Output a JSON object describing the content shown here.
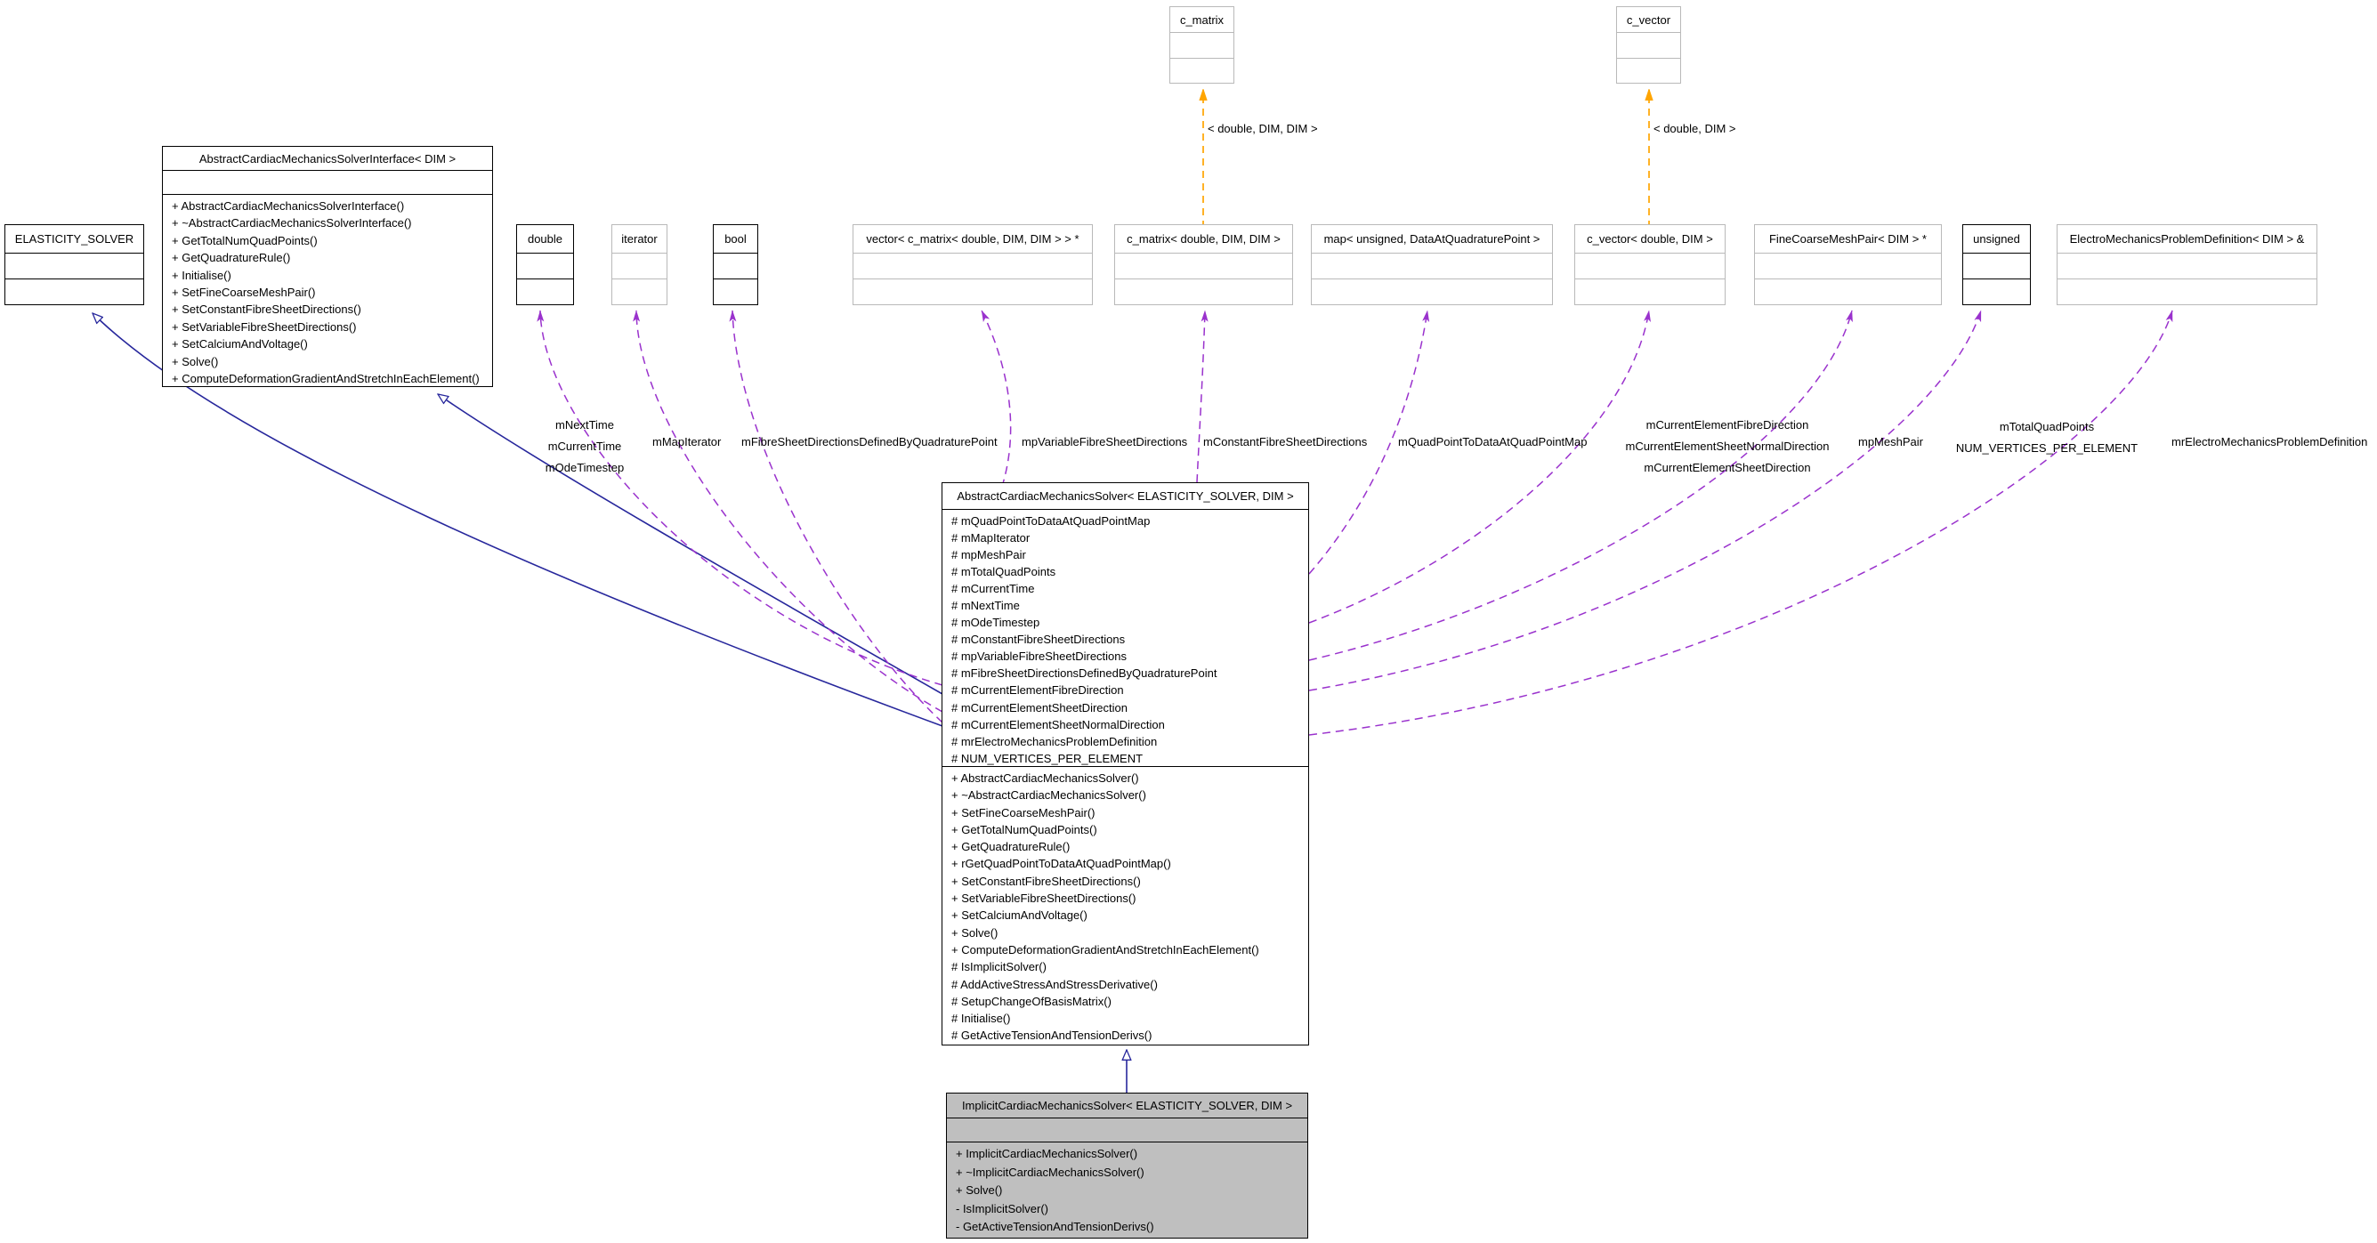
{
  "colors": {
    "usage_edge": "#9a32cd",
    "inherit_edge": "#27279c",
    "template_edge": "#ffa500",
    "undocumented_border": "#b9b9b9",
    "highlighted_fill": "#bfbfbf",
    "box_border": "#000000"
  },
  "classes": {
    "c_matrix_template": {
      "title": "c_matrix"
    },
    "c_vector_template": {
      "title": "c_vector"
    },
    "elasticity_solver": {
      "title": "ELASTICITY_SOLVER"
    },
    "interface": {
      "title": "AbstractCardiacMechanicsSolverInterface< DIM >",
      "methods": [
        "+ AbstractCardiacMechanicsSolverInterface()",
        "+ ~AbstractCardiacMechanicsSolverInterface()",
        "+ GetTotalNumQuadPoints()",
        "+ GetQuadratureRule()",
        "+ Initialise()",
        "+ SetFineCoarseMeshPair()",
        "+ SetConstantFibreSheetDirections()",
        "+ SetVariableFibreSheetDirections()",
        "+ SetCalciumAndVoltage()",
        "+ Solve()",
        "+ ComputeDeformationGradientAndStretchInEachElement()"
      ]
    },
    "type_double": {
      "title": "double"
    },
    "type_iterator": {
      "title": "iterator"
    },
    "type_bool": {
      "title": "bool"
    },
    "type_vector_cmatrix": {
      "title": "vector< c_matrix< double, DIM, DIM > > *"
    },
    "type_cmatrix": {
      "title": "c_matrix< double, DIM, DIM >"
    },
    "type_map": {
      "title": "map< unsigned, DataAtQuadraturePoint >"
    },
    "type_cvector": {
      "title": "c_vector< double, DIM >"
    },
    "type_finecoarsemeshpair": {
      "title": "FineCoarseMeshPair< DIM > *"
    },
    "type_unsigned": {
      "title": "unsigned"
    },
    "type_electromechanics": {
      "title": "ElectroMechanicsProblemDefinition< DIM > &"
    },
    "abstract_solver": {
      "title": "AbstractCardiacMechanicsSolver< ELASTICITY_SOLVER, DIM >",
      "attributes": [
        "# mQuadPointToDataAtQuadPointMap",
        "# mMapIterator",
        "# mpMeshPair",
        "# mTotalQuadPoints",
        "# mCurrentTime",
        "# mNextTime",
        "# mOdeTimestep",
        "# mConstantFibreSheetDirections",
        "# mpVariableFibreSheetDirections",
        "# mFibreSheetDirectionsDefinedByQuadraturePoint",
        "# mCurrentElementFibreDirection",
        "# mCurrentElementSheetDirection",
        "# mCurrentElementSheetNormalDirection",
        "# mrElectroMechanicsProblemDefinition",
        "# NUM_VERTICES_PER_ELEMENT"
      ],
      "methods": [
        "+ AbstractCardiacMechanicsSolver()",
        "+ ~AbstractCardiacMechanicsSolver()",
        "+ SetFineCoarseMeshPair()",
        "+ GetTotalNumQuadPoints()",
        "+ GetQuadratureRule()",
        "+ rGetQuadPointToDataAtQuadPointMap()",
        "+ SetConstantFibreSheetDirections()",
        "+ SetVariableFibreSheetDirections()",
        "+ SetCalciumAndVoltage()",
        "+ Solve()",
        "+ ComputeDeformationGradientAndStretchInEachElement()",
        "# IsImplicitSolver()",
        "# AddActiveStressAndStressDerivative()",
        "# SetupChangeOfBasisMatrix()",
        "# Initialise()",
        "# GetActiveTensionAndTensionDerivs()"
      ]
    },
    "implicit_solver": {
      "title": "ImplicitCardiacMechanicsSolver< ELASTICITY_SOLVER, DIM >",
      "methods": [
        "+ ImplicitCardiacMechanicsSolver()",
        "+ ~ImplicitCardiacMechanicsSolver()",
        "+ Solve()",
        "- IsImplicitSolver()",
        "- GetActiveTensionAndTensionDerivs()"
      ]
    }
  },
  "edge_labels": {
    "c_matrix_template_args": "< double, DIM, DIM >",
    "c_vector_template_args": "< double, DIM >",
    "double_members": [
      "mNextTime",
      "mCurrentTime",
      "mOdeTimestep"
    ],
    "iterator_member": "mMapIterator",
    "bool_member": "mFibreSheetDirectionsDefinedByQuadraturePoint",
    "vector_member": "mpVariableFibreSheetDirections",
    "cmatrix_member": "mConstantFibreSheetDirections",
    "map_member": "mQuadPointToDataAtQuadPointMap",
    "cvector_members": [
      "mCurrentElementFibreDirection",
      "mCurrentElementSheetNormalDirection",
      "mCurrentElementSheetDirection"
    ],
    "meshpair_member": "mpMeshPair",
    "unsigned_members": [
      "mTotalQuadPoints",
      "NUM_VERTICES_PER_ELEMENT"
    ],
    "electromechanics_member": "mrElectroMechanicsProblemDefinition"
  }
}
